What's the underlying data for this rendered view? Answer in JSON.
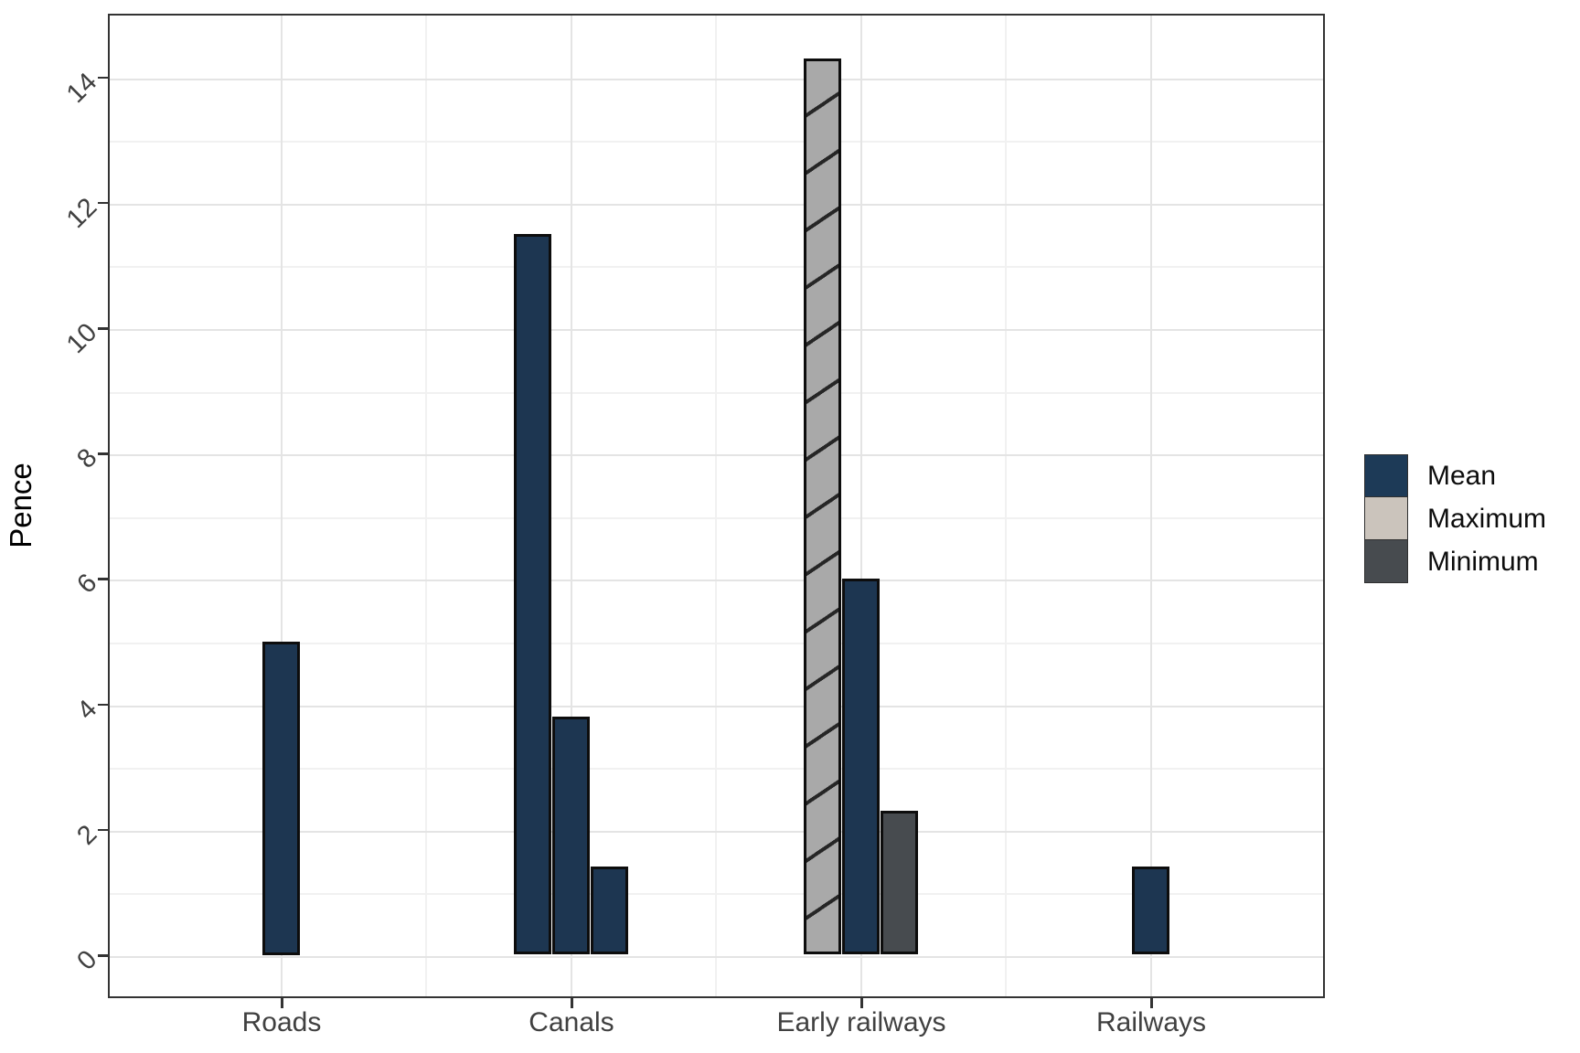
{
  "chart_data": {
    "type": "bar",
    "title": "",
    "xlabel": "",
    "ylabel": "Pence",
    "ylim": [
      0,
      15.15
    ],
    "yticks": [
      0,
      2,
      4,
      6,
      8,
      10,
      12,
      14
    ],
    "yticks_minor": [
      1,
      3,
      5,
      7,
      9,
      11,
      13
    ],
    "grid": true,
    "x_minor_gridlines_between_categories": true,
    "legend_position": "right",
    "categories": [
      "Roads",
      "Canals",
      "Early railways",
      "Railways"
    ],
    "legend": [
      {
        "label": "Mean",
        "series_id": "mean",
        "bar_fill": "#1d3651",
        "key_fill": "#1d3a57",
        "pattern": "solid"
      },
      {
        "label": "Maximum",
        "series_id": "maximum",
        "bar_fill": "#a9a9a9",
        "key_fill": "#cbc4bc",
        "pattern": "diagonal-hatch"
      },
      {
        "label": "Minimum",
        "series_id": "minimum",
        "bar_fill": "#474b4f",
        "key_fill": "#474b4f",
        "pattern": "solid"
      }
    ],
    "bars": [
      {
        "category": "Roads",
        "series": "mean",
        "value": 5
      },
      {
        "category": "Canals",
        "series": "mean",
        "value": 11.5
      },
      {
        "category": "Canals",
        "series": "mean",
        "value": 3.8
      },
      {
        "category": "Canals",
        "series": "mean",
        "value": 1.4
      },
      {
        "category": "Early railways",
        "series": "maximum",
        "value": 14.3
      },
      {
        "category": "Early railways",
        "series": "mean",
        "value": 6
      },
      {
        "category": "Early railways",
        "series": "minimum",
        "value": 2.3
      },
      {
        "category": "Railways",
        "series": "mean",
        "value": 1.4
      }
    ],
    "colors": {
      "panel_border": "#333333",
      "grid_major": "#e4e4e4",
      "grid_minor": "#f1f1f1",
      "axis_text": "#404040",
      "bar_outline": "#0d0d0d",
      "hatch_line": "#262626",
      "background": "#ffffff"
    }
  }
}
